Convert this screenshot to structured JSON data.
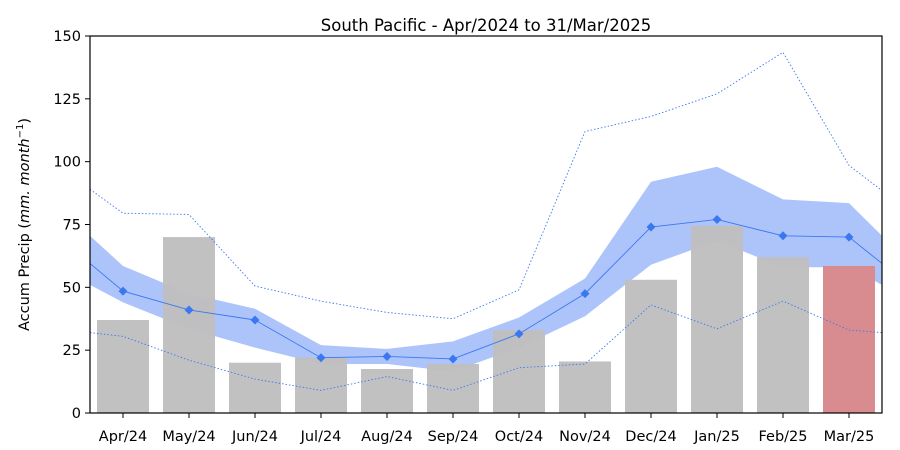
{
  "chart_data": {
    "type": "bar",
    "title": "South Pacific - Apr/2024 to 31/Mar/2025",
    "xlabel": "",
    "ylabel_main": "Accum Precip (",
    "ylabel_italic": "mm. month",
    "ylabel_sup": "−1",
    "ylabel_close": ")",
    "ylim": [
      0,
      150
    ],
    "yticks": [
      0,
      25,
      50,
      75,
      100,
      125,
      150
    ],
    "grid": false,
    "categories": [
      "Apr/24",
      "May/24",
      "Jun/24",
      "Jul/24",
      "Aug/24",
      "Sep/24",
      "Oct/24",
      "Nov/24",
      "Dec/24",
      "Jan/25",
      "Feb/25",
      "Mar/25"
    ],
    "bars": {
      "values": [
        37,
        70,
        20,
        22,
        17.5,
        19.5,
        33,
        20.5,
        53,
        74.5,
        62,
        58.5
      ],
      "color": "#bfbfbf",
      "highlight_color": "#d98c8f",
      "highlight_index": 11
    },
    "mean_line": {
      "values": [
        48.5,
        41,
        37,
        22,
        22.5,
        21.5,
        31.5,
        47.5,
        74,
        77,
        70.5,
        70
      ],
      "start": 59.5,
      "end": 59.5,
      "color": "#3b78f0"
    },
    "band": {
      "upper": [
        58.5,
        47.5,
        41.5,
        27,
        25.5,
        28.5,
        38,
        53.5,
        92,
        98,
        85,
        83.5
      ],
      "lower": [
        44,
        33.5,
        26,
        19.5,
        19.5,
        16.5,
        26,
        38.5,
        59,
        68.5,
        58,
        58
      ],
      "upper_start": 70.5,
      "upper_end": 70.5,
      "lower_start": 51,
      "lower_end": 51,
      "color": "#adc4fb"
    },
    "max_line": {
      "values": [
        79.5,
        79,
        50.5,
        44.5,
        40,
        37.5,
        49,
        112,
        118,
        127,
        143.5,
        98.5
      ],
      "start": 89,
      "end": 88.5,
      "color": "#3b78f0"
    },
    "min_line": {
      "values": [
        30.5,
        21,
        13.5,
        9,
        14.5,
        9,
        18,
        19.5,
        43,
        33.5,
        44.5,
        33
      ],
      "start": 32,
      "end": 32,
      "color": "#3b78f0"
    }
  }
}
